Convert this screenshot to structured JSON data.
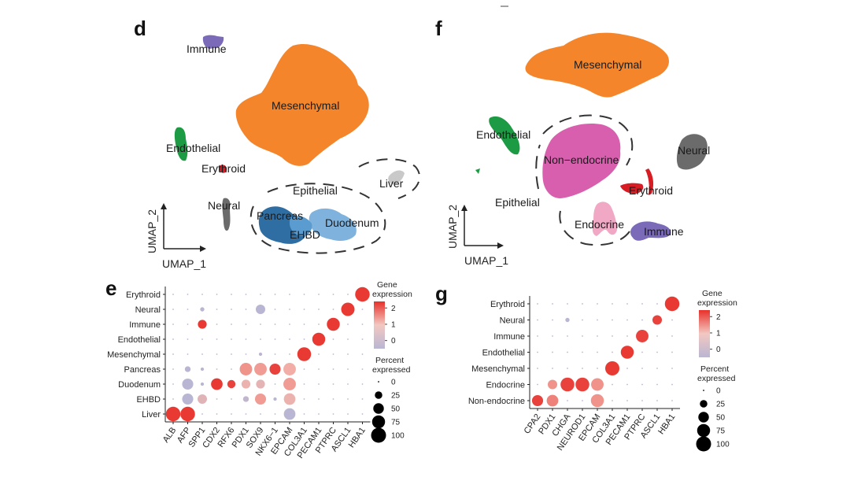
{
  "colors": {
    "mesenchymal": "#f4852b",
    "endothelial": "#1d9a44",
    "erythroid": "#d81c24",
    "neural": "#6b6b6b",
    "immune": "#7b6ab8",
    "liver": "#c9c9c9",
    "epithelial_dark": "#2f6ea3",
    "epithelial_light": "#7fb2dc",
    "non_endocrine": "#d85fae",
    "endocrine": "#f0a8c4",
    "expr_high": "#e8302a",
    "expr_mid": "#f2b3aa",
    "expr_low": "#b9b6d3"
  },
  "panels": {
    "d": {
      "letter": "d",
      "labels": {
        "immune": "Immune",
        "mesenchymal": "Mesenchymal",
        "endothelial": "Endothelial",
        "erythroid": "Erythroid",
        "neural": "Neural",
        "epithelial": "Epithelial",
        "liver": "Liver",
        "pancreas": "Pancreas",
        "duodenum": "Duodenum",
        "ehbd": "EHBD"
      },
      "axis_y": "UMAP_2",
      "axis_x": "UMAP_1"
    },
    "f": {
      "letter": "f",
      "labels": {
        "mesenchymal": "Mesenchymal",
        "endothelial": "Endothelial",
        "non_endocrine": "Non−endocrine",
        "neural": "Neural",
        "erythroid": "Erythroid",
        "epithelial": "Epithelial",
        "endocrine": "Endocrine",
        "immune": "Immune"
      },
      "axis_y": "UMAP_2",
      "axis_x": "UMAP_1"
    }
  },
  "chart_data": [
    {
      "panel": "e",
      "type": "scatter",
      "subtype": "dot plot",
      "rows": [
        "Erythroid",
        "Neural",
        "Immune",
        "Endothelial",
        "Mesenchymal",
        "Pancreas",
        "Duodenum",
        "EHBD",
        "Liver"
      ],
      "columns": [
        "ALB",
        "AFP",
        "SPP1",
        "CDX2",
        "RFX6",
        "PDX1",
        "SOX9",
        "NKX6−1",
        "EPCAM",
        "COL3A1",
        "PECAM1",
        "PTPRC",
        "ASCL1",
        "HBA1"
      ],
      "dots": [
        {
          "row": "Liver",
          "col": "ALB",
          "expr": 2.3,
          "pct": 95
        },
        {
          "row": "Liver",
          "col": "AFP",
          "expr": 2.3,
          "pct": 95
        },
        {
          "row": "Liver",
          "col": "EPCAM",
          "expr": -0.5,
          "pct": 60
        },
        {
          "row": "EHBD",
          "col": "AFP",
          "expr": -0.5,
          "pct": 55
        },
        {
          "row": "EHBD",
          "col": "SPP1",
          "expr": 0.5,
          "pct": 40
        },
        {
          "row": "EHBD",
          "col": "PDX1",
          "expr": -0.3,
          "pct": 15
        },
        {
          "row": "EHBD",
          "col": "SOX9",
          "expr": 1.2,
          "pct": 55
        },
        {
          "row": "EHBD",
          "col": "NKX6−1",
          "expr": -0.5,
          "pct": 5
        },
        {
          "row": "EHBD",
          "col": "EPCAM",
          "expr": 0.8,
          "pct": 60
        },
        {
          "row": "Duodenum",
          "col": "AFP",
          "expr": -0.5,
          "pct": 55
        },
        {
          "row": "Duodenum",
          "col": "SPP1",
          "expr": -0.5,
          "pct": 5
        },
        {
          "row": "Duodenum",
          "col": "CDX2",
          "expr": 2.3,
          "pct": 60
        },
        {
          "row": "Duodenum",
          "col": "RFX6",
          "expr": 2.2,
          "pct": 30
        },
        {
          "row": "Duodenum",
          "col": "PDX1",
          "expr": 0.8,
          "pct": 35
        },
        {
          "row": "Duodenum",
          "col": "SOX9",
          "expr": 0.6,
          "pct": 35
        },
        {
          "row": "Duodenum",
          "col": "EPCAM",
          "expr": 1.2,
          "pct": 70
        },
        {
          "row": "Pancreas",
          "col": "AFP",
          "expr": -0.5,
          "pct": 15
        },
        {
          "row": "Pancreas",
          "col": "SPP1",
          "expr": -0.5,
          "pct": 5
        },
        {
          "row": "Pancreas",
          "col": "PDX1",
          "expr": 1.3,
          "pct": 70
        },
        {
          "row": "Pancreas",
          "col": "SOX9",
          "expr": 1.2,
          "pct": 70
        },
        {
          "row": "Pancreas",
          "col": "NKX6−1",
          "expr": 2.2,
          "pct": 55
        },
        {
          "row": "Pancreas",
          "col": "EPCAM",
          "expr": 1.0,
          "pct": 70
        },
        {
          "row": "Mesenchymal",
          "col": "SOX9",
          "expr": -0.5,
          "pct": 5
        },
        {
          "row": "Mesenchymal",
          "col": "COL3A1",
          "expr": 2.3,
          "pct": 85
        },
        {
          "row": "Endothelial",
          "col": "PECAM1",
          "expr": 2.3,
          "pct": 75
        },
        {
          "row": "Immune",
          "col": "SPP1",
          "expr": 2.3,
          "pct": 35
        },
        {
          "row": "Immune",
          "col": "PTPRC",
          "expr": 2.3,
          "pct": 75
        },
        {
          "row": "Neural",
          "col": "SPP1",
          "expr": -0.5,
          "pct": 8
        },
        {
          "row": "Neural",
          "col": "SOX9",
          "expr": -0.5,
          "pct": 40
        },
        {
          "row": "Neural",
          "col": "ASCL1",
          "expr": 2.3,
          "pct": 80
        },
        {
          "row": "Erythroid",
          "col": "HBA1",
          "expr": 2.3,
          "pct": 95
        }
      ],
      "legend": {
        "color_title": [
          "Gene",
          "expression"
        ],
        "color_ticks": [
          2,
          1,
          0
        ],
        "color_range": [
          -0.5,
          2.4
        ],
        "size_title": [
          "Percent",
          "expressed"
        ],
        "size_ticks": [
          0,
          25,
          50,
          75,
          100
        ]
      }
    },
    {
      "panel": "g",
      "type": "scatter",
      "subtype": "dot plot",
      "rows": [
        "Erythroid",
        "Neural",
        "Immune",
        "Endothelial",
        "Mesenchymal",
        "Endocrine",
        "Non-endocrine"
      ],
      "columns": [
        "CPA2",
        "PDX1",
        "CHGA",
        "NEUROD1",
        "EPCAM",
        "COL3A1",
        "PECAM1",
        "PTPRC",
        "ASCL1",
        "HBA1"
      ],
      "dots": [
        {
          "row": "Non-endocrine",
          "col": "CPA2",
          "expr": 2.2,
          "pct": 55
        },
        {
          "row": "Non-endocrine",
          "col": "PDX1",
          "expr": 1.5,
          "pct": 60
        },
        {
          "row": "Non-endocrine",
          "col": "EPCAM",
          "expr": 1.3,
          "pct": 75
        },
        {
          "row": "Endocrine",
          "col": "PDX1",
          "expr": 1.3,
          "pct": 40
        },
        {
          "row": "Endocrine",
          "col": "CHGA",
          "expr": 2.2,
          "pct": 85
        },
        {
          "row": "Endocrine",
          "col": "NEUROD1",
          "expr": 2.2,
          "pct": 85
        },
        {
          "row": "Endocrine",
          "col": "EPCAM",
          "expr": 1.3,
          "pct": 70
        },
        {
          "row": "Mesenchymal",
          "col": "COL3A1",
          "expr": 2.3,
          "pct": 90
        },
        {
          "row": "Endothelial",
          "col": "PECAM1",
          "expr": 2.3,
          "pct": 75
        },
        {
          "row": "Immune",
          "col": "PTPRC",
          "expr": 2.2,
          "pct": 70
        },
        {
          "row": "Neural",
          "col": "CHGA",
          "expr": -0.5,
          "pct": 8
        },
        {
          "row": "Neural",
          "col": "ASCL1",
          "expr": 2.2,
          "pct": 40
        },
        {
          "row": "Erythroid",
          "col": "HBA1",
          "expr": 2.3,
          "pct": 95
        }
      ],
      "legend": {
        "color_title": [
          "Gene",
          "expression"
        ],
        "color_ticks": [
          2,
          1,
          0
        ],
        "color_range": [
          -0.5,
          2.4
        ],
        "size_title": [
          "Percent",
          "expressed"
        ],
        "size_ticks": [
          0,
          25,
          50,
          75,
          100
        ]
      }
    }
  ]
}
